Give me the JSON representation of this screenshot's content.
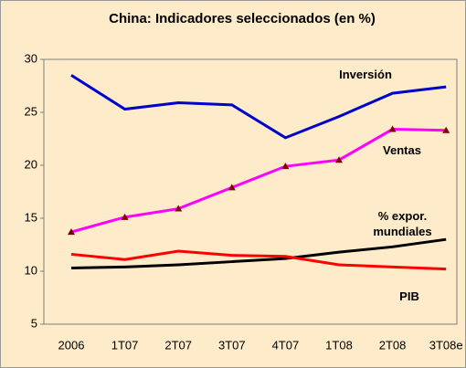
{
  "chart_data": {
    "type": "line",
    "title": "China: Indicadores seleccionados (en %)",
    "categories": [
      "2006",
      "1T07",
      "2T07",
      "3T07",
      "4T07",
      "1T08",
      "2T08",
      "3T08e"
    ],
    "series": [
      {
        "name": "Inversión",
        "color": "#0000CC",
        "values": [
          28.5,
          25.3,
          25.9,
          25.7,
          22.6,
          24.6,
          26.8,
          27.4
        ]
      },
      {
        "name": "Ventas",
        "color": "#FF00FF",
        "marker_color": "#800000",
        "values": [
          13.7,
          15.1,
          15.9,
          17.9,
          19.9,
          20.5,
          23.4,
          23.3
        ]
      },
      {
        "name": "% expor. mundiales",
        "color": "#000000",
        "values": [
          10.3,
          10.4,
          10.6,
          10.9,
          11.2,
          11.8,
          12.3,
          13.0
        ]
      },
      {
        "name": "PIB",
        "color": "#FF0000",
        "values": [
          11.6,
          11.1,
          11.9,
          11.5,
          11.4,
          10.6,
          10.4,
          10.2
        ]
      }
    ],
    "ylim": [
      5,
      30
    ],
    "yticks": [
      5,
      10,
      15,
      20,
      25,
      30
    ]
  }
}
